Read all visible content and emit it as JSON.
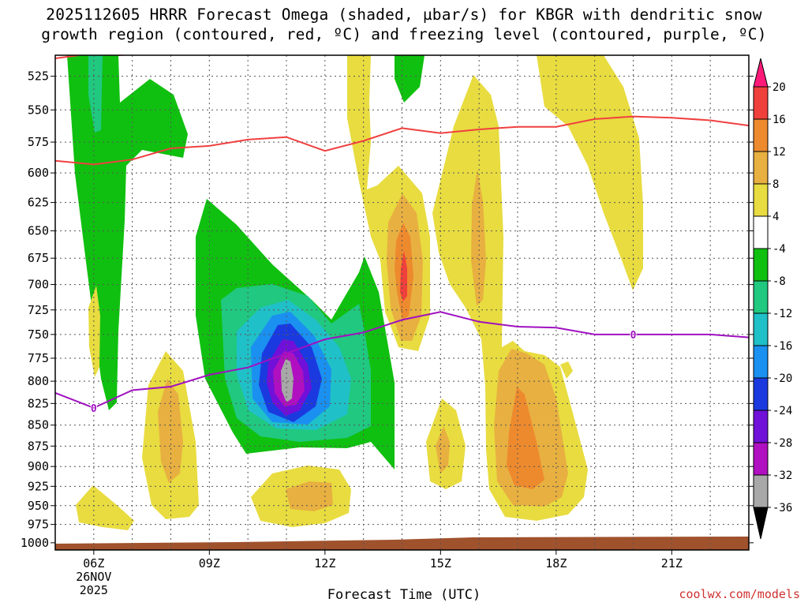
{
  "title_line1": "2025112605 HRRR Forecast Omega (shaded, µbar/s) for KBGR with dendritic snow",
  "title_line2": "growth region (contoured, red, ºC) and freezing level (contoured, purple, ºC)",
  "credit": "coolwx.com/models",
  "chart_data": {
    "type": "heatmap",
    "title": "2025112605 HRRR Forecast Omega (shaded, µbar/s) for KBGR with dendritic snow growth region (contoured, red, ºC) and freezing level (contoured, purple, ºC)",
    "xlabel": "Forecast Time (UTC)",
    "ylabel": "",
    "x_ticks": [
      {
        "hour": 6,
        "label": "06Z",
        "sub1": "26NOV",
        "sub2": "2025"
      },
      {
        "hour": 9,
        "label": "09Z"
      },
      {
        "hour": 12,
        "label": "12Z"
      },
      {
        "hour": 15,
        "label": "15Z"
      },
      {
        "hour": 18,
        "label": "18Z"
      },
      {
        "hour": 21,
        "label": "21Z"
      }
    ],
    "xlim_hours": [
      5,
      23
    ],
    "y_ticks": [
      525,
      550,
      575,
      600,
      625,
      650,
      675,
      700,
      725,
      750,
      775,
      800,
      825,
      850,
      875,
      900,
      925,
      950,
      975,
      1000
    ],
    "ylim_hPa": [
      1010,
      510
    ],
    "y_scale": "log-pressure",
    "grid": true,
    "colorbar": {
      "labels": [
        "20",
        "16",
        "12",
        "8",
        "4",
        "-4",
        "-8",
        "-12",
        "-16",
        "-20",
        "-24",
        "-28",
        "-32",
        "-36"
      ],
      "colors": [
        "#ff1a7a",
        "#f0403c",
        "#ee8a2e",
        "#e8b040",
        "#e8dc40",
        "#ffffff",
        "#10c010",
        "#20c880",
        "#20c0c8",
        "#1a90f0",
        "#1a3ae0",
        "#7010d8",
        "#b010c0",
        "#a8a8a8",
        "#000000"
      ]
    },
    "series": [
      {
        "name": "dendritic snow growth region",
        "color": "#f04040",
        "points": [
          [
            5,
            590
          ],
          [
            6,
            593
          ],
          [
            7,
            589
          ],
          [
            8,
            580
          ],
          [
            9,
            578
          ],
          [
            10,
            573
          ],
          [
            11,
            571
          ],
          [
            12,
            582
          ],
          [
            13,
            574
          ],
          [
            14,
            564
          ],
          [
            15,
            568
          ],
          [
            16,
            565
          ],
          [
            17,
            563
          ],
          [
            18,
            563
          ],
          [
            19,
            557
          ],
          [
            20,
            555
          ],
          [
            21,
            556
          ],
          [
            22,
            558
          ],
          [
            23,
            562
          ]
        ]
      },
      {
        "name": "freezing level",
        "color": "#a010c0",
        "points": [
          [
            5,
            813
          ],
          [
            6,
            830
          ],
          [
            7,
            810
          ],
          [
            8,
            806
          ],
          [
            9,
            793
          ],
          [
            10,
            785
          ],
          [
            11,
            770
          ],
          [
            12,
            755
          ],
          [
            13,
            748
          ],
          [
            14,
            735
          ],
          [
            15,
            727
          ],
          [
            16,
            737
          ],
          [
            17,
            742
          ],
          [
            18,
            743
          ],
          [
            19,
            750
          ],
          [
            20,
            750
          ],
          [
            21,
            750
          ],
          [
            22,
            750
          ],
          [
            23,
            753
          ]
        ]
      }
    ],
    "contour_label": "0",
    "omega_regions": [
      {
        "level": "-4",
        "color": "#10c010",
        "description": "upward motion band 05Z-12Z"
      },
      {
        "level": "-32",
        "color": "#a8a8a8",
        "description": "core near 11Z 800 hPa"
      },
      {
        "level": "4",
        "color": "#e8dc40",
        "description": "downward motion columns 13Z-21Z"
      },
      {
        "level": "16",
        "color": "#f0403c",
        "description": "peak near 14Z 700 hPa"
      }
    ]
  }
}
